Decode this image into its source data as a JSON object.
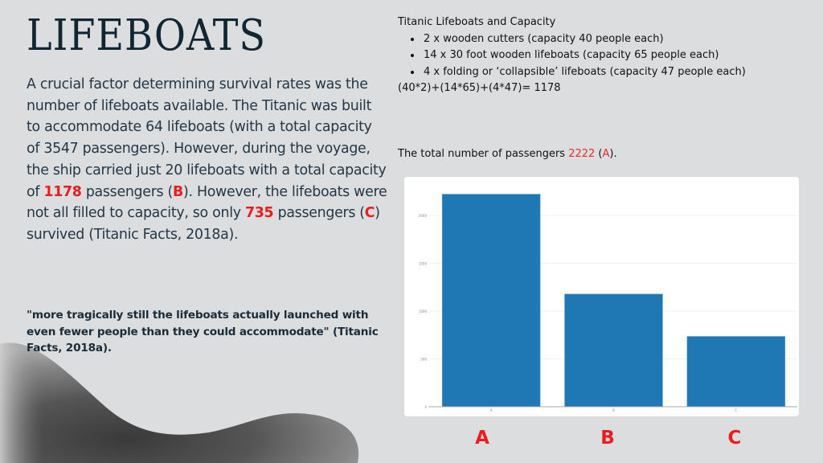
{
  "slide": {
    "title": "LIFEBOATS",
    "body": {
      "p1": "A crucial factor determining survival rates was the number of lifeboats available. The Titanic was built to accommodate 64 lifeboats (with a total capacity of 3547 passengers). However, during the voyage, the ship carried just 20 lifeboats with a total capacity of ",
      "v1": "1178",
      "p2": " passengers (",
      "l1": "B",
      "p3": "). However, the lifeboats were not all filled to capacity, so only ",
      "v2": "735",
      "p4": " passengers (",
      "l2": "C",
      "p5": ") survived (Titanic Facts, 2018a)."
    },
    "quote": "\"more tragically still the lifeboats actually launched with even fewer people than they could accommodate\" (Titanic Facts, 2018a).",
    "capacity": {
      "heading": "Titanic Lifeboats and Capacity",
      "items": [
        "2 x wooden cutters (capacity 40 people each)",
        "14 x 30 foot wooden lifeboats (capacity 65 people each)",
        "4 x folding or ‘collapsible’ lifeboats (capacity 47 people each)"
      ],
      "formula": "(40*2)+(14*65)+(4*47)= 1178"
    },
    "total": {
      "prefix": "The total number of passengers ",
      "value": "2222",
      "open": " (",
      "letter": "A",
      "close": ")."
    },
    "big_labels": [
      "A",
      "B",
      "C"
    ]
  },
  "colors": {
    "background": "#dcdddf",
    "bar": "#1f77b4",
    "highlight": "#ee1c1c",
    "title": "#112633"
  },
  "chart_data": {
    "type": "bar",
    "title": "",
    "xlabel": "",
    "ylabel": "",
    "categories": [
      "A",
      "B",
      "C"
    ],
    "values": [
      2222,
      1178,
      735
    ],
    "yticks": [
      0,
      500,
      1000,
      1500,
      2000
    ],
    "ylim": [
      0,
      2340
    ],
    "grid": true,
    "legend": "none"
  }
}
